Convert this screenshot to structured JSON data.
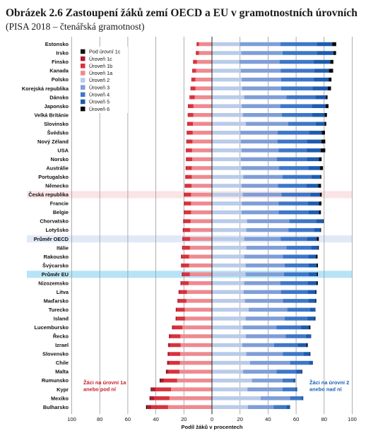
{
  "chart_data": {
    "type": "bar",
    "stacked": "diverging",
    "title": "Obrázek 2.6 Zastoupení žáků zemí OECD a EU v gramotnostních úrovních",
    "subtitle": "(PISA 2018 – čtenářská gramotnost)",
    "xlabel": "Podíl žáků v procentech",
    "x_ticks": [
      "100",
      "80",
      "60",
      "40",
      "20",
      "0",
      "20",
      "40",
      "60",
      "80",
      "100"
    ],
    "xlim": [
      -100,
      100
    ],
    "grid": true,
    "legend_position": "top-left",
    "annotation_left": [
      "Žáci na úrovni 1a",
      "anebo pod ní"
    ],
    "annotation_right": [
      "Žáci na úrovni 2",
      "anebo nad ní"
    ],
    "levels": [
      "Pod úrovní 1c",
      "Úroveň 1c",
      "Úroveň 1b",
      "Úroveň 1a",
      "Úroveň 2",
      "Úroveň 3",
      "Úroveň 4",
      "Úroveň 5",
      "Úroveň 6"
    ],
    "level_colors": [
      "#111111",
      "#b3182b",
      "#d8323c",
      "#ee8a90",
      "#b9cbe9",
      "#7f9ed8",
      "#3d77c9",
      "#1d5cb0",
      "#0a0a0a"
    ],
    "highlight_colors": {
      "Česká republika": "#fbe4e5",
      "Průměr OECD": "#e1e8f6",
      "Průměr EU": "#b7e3f6"
    },
    "categories": [
      "Estonsko",
      "Irsko",
      "Finsko",
      "Kanada",
      "Polsko",
      "Korejská republika",
      "Dánsko",
      "Japonsko",
      "Velká Británie",
      "Slovinsko",
      "Švédsko",
      "Nový Zéland",
      "USA",
      "Norsko",
      "Austrálie",
      "Portugalsko",
      "Německo",
      "Česká republika",
      "Francie",
      "Belgie",
      "Chorvatsko",
      "Lotyšsko",
      "Průměr OECD",
      "Itálie",
      "Rakousko",
      "Švýcarsko",
      "Průměr EU",
      "Nizozemsko",
      "Litva",
      "Maďarsko",
      "Turecko",
      "Island",
      "Lucembursko",
      "Řecko",
      "Izrael",
      "Slovensko",
      "Chile",
      "Malta",
      "Rumunsko",
      "Kypr",
      "Mexiko",
      "Bulharsko"
    ],
    "series": [
      {
        "name": "Pod úrovní 1c",
        "values": [
          0,
          0,
          0,
          0,
          0,
          0,
          0,
          0,
          0,
          0,
          0,
          0,
          0,
          0,
          0,
          0,
          0,
          0,
          0,
          0,
          0,
          0,
          0,
          0,
          0,
          0,
          0,
          0,
          0,
          0,
          0,
          0,
          0,
          0,
          0,
          0,
          0,
          0.3,
          0.5,
          0.5,
          0.4,
          0.7
        ]
      },
      {
        "name": "Úroveň 1c",
        "values": [
          0.2,
          0.2,
          0.3,
          0.3,
          0.3,
          0.4,
          0.5,
          0.5,
          0.5,
          0.5,
          0.6,
          0.6,
          0.6,
          0.6,
          0.6,
          0.6,
          0.7,
          0.7,
          0.7,
          0.7,
          0.8,
          0.7,
          0.8,
          0.8,
          0.8,
          0.8,
          0.8,
          0.8,
          0.9,
          0.9,
          1.0,
          1.0,
          1.2,
          1.2,
          1.5,
          1.5,
          1.5,
          1.5,
          2.5,
          3.0,
          2.8,
          3.0
        ]
      },
      {
        "name": "Úroveň 1b",
        "values": [
          1.5,
          2.0,
          2.5,
          2.5,
          2.6,
          3.2,
          3.2,
          3.4,
          3.5,
          3.6,
          3.7,
          3.8,
          3.8,
          3.8,
          3.8,
          4.0,
          4.1,
          4.3,
          4.3,
          4.4,
          4.5,
          4.6,
          4.7,
          4.8,
          5.0,
          4.9,
          4.9,
          5.0,
          5.1,
          5.5,
          5.4,
          5.7,
          6.3,
          7.0,
          7.5,
          7.5,
          7.7,
          7.8,
          9.5,
          11.0,
          11.0,
          12.0
        ]
      },
      {
        "name": "Úroveň 1a",
        "values": [
          9.3,
          9.3,
          10.7,
          11.3,
          11.8,
          11.7,
          12.3,
          13.2,
          13.3,
          13.6,
          13.7,
          13.9,
          14.2,
          14.1,
          14.4,
          14.4,
          14.6,
          14.9,
          14.9,
          14.9,
          15.2,
          15.5,
          15.6,
          15.7,
          16.3,
          16.3,
          15.8,
          16.6,
          17.8,
          18.2,
          19.4,
          19.2,
          21.0,
          22.5,
          22.3,
          22.6,
          22.8,
          23.2,
          24.8,
          29.2,
          30.3,
          31.3
        ]
      },
      {
        "name": "Úroveň 2",
        "values": [
          19.9,
          20.8,
          19.5,
          20.5,
          21.2,
          21.5,
          23.0,
          21.2,
          22.1,
          24.2,
          20.2,
          20.5,
          21.0,
          20.5,
          21.0,
          22.3,
          21.0,
          22.0,
          21.2,
          21.0,
          25.0,
          24.5,
          23.0,
          24.5,
          23.0,
          24.0,
          24.0,
          23.0,
          22.6,
          23.5,
          26.2,
          24.0,
          22.0,
          24.1,
          21.7,
          24.5,
          27.2,
          22.2,
          28.5,
          25.3,
          34.7,
          25.6
        ]
      },
      {
        "name": "Úroveň 3",
        "values": [
          29.0,
          29.5,
          28.7,
          28.6,
          28.1,
          27.8,
          30.2,
          27.5,
          27.7,
          30.1,
          26.6,
          26.2,
          26.6,
          25.8,
          26.9,
          28.1,
          26.0,
          27.6,
          26.3,
          26.5,
          30.2,
          30.0,
          26.0,
          28.7,
          27.6,
          27.9,
          27.4,
          25.7,
          26.6,
          27.1,
          27.5,
          27.9,
          24.1,
          28.4,
          22.6,
          26.0,
          28.5,
          23.8,
          21.8,
          25.0,
          21.0,
          18.3
        ]
      },
      {
        "name": "Úroveň 4",
        "values": [
          25.8,
          24.4,
          24.3,
          23.9,
          23.3,
          22.5,
          20.5,
          22.5,
          21.7,
          19.6,
          22.3,
          21.3,
          19.8,
          21.5,
          20.8,
          20.6,
          20.3,
          20.5,
          21.0,
          21.5,
          19.0,
          18.2,
          19.0,
          17.6,
          18.0,
          17.1,
          17.5,
          19.5,
          19.0,
          18.2,
          16.3,
          16.0,
          17.4,
          14.4,
          16.7,
          14.8,
          13.5,
          14.2,
          7.3,
          9.2,
          7.9,
          9.5
        ]
      },
      {
        "name": "Úroveň 5",
        "values": [
          11.0,
          11.8,
          11.8,
          10.4,
          10.6,
          10.8,
          7.5,
          9.9,
          8.8,
          6.4,
          9.2,
          10.0,
          10.2,
          8.4,
          8.2,
          6.2,
          8.4,
          6.8,
          7.8,
          7.2,
          5.0,
          4.5,
          6.8,
          4.8,
          5.5,
          5.6,
          5.8,
          6.3,
          5.6,
          5.0,
          3.6,
          5.3,
          5.7,
          3.6,
          6.3,
          4.4,
          2.7,
          3.8,
          1.8,
          1.3,
          1.4,
          2.1
        ]
      },
      {
        "name": "Úroveň 6",
        "values": [
          2.9,
          2.0,
          2.3,
          3.0,
          2.0,
          2.3,
          1.2,
          2.0,
          1.7,
          1.2,
          2.3,
          2.8,
          3.2,
          2.0,
          2.3,
          0.8,
          2.1,
          1.4,
          1.8,
          1.5,
          0.5,
          0.6,
          1.4,
          0.6,
          1.2,
          1.0,
          0.9,
          1.0,
          0.7,
          0.6,
          0.2,
          0.6,
          1.0,
          0.2,
          1.0,
          0.5,
          0.1,
          0.4,
          0.1,
          0,
          0.1,
          0.2
        ]
      }
    ]
  }
}
